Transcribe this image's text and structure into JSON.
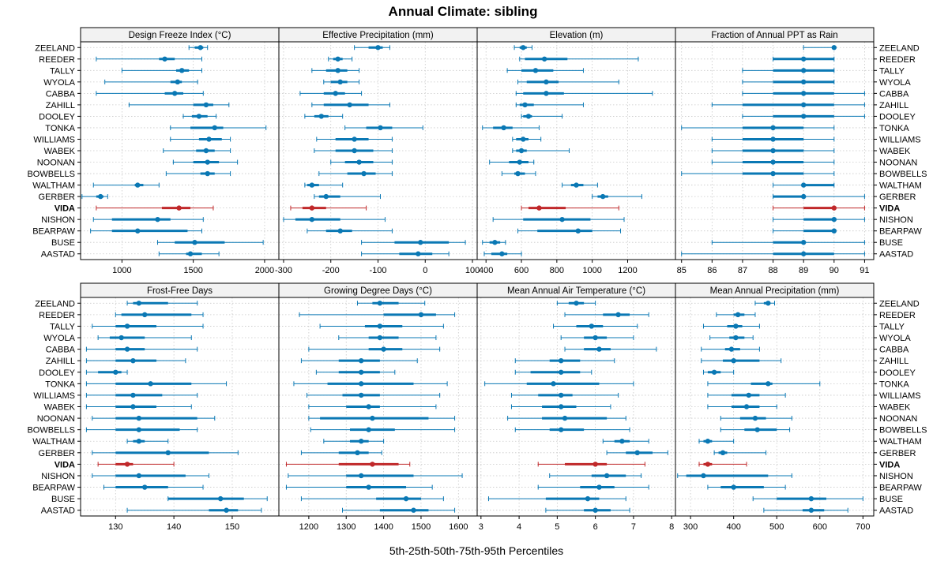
{
  "chart_data": {
    "type": "percentile-dotplot",
    "title": "Annual Climate: sibling",
    "xlabel": "5th-25th-50th-75th-95th Percentiles",
    "highlight": "VIDA",
    "categories": [
      "ZEELAND",
      "REEDER",
      "TALLY",
      "WYOLA",
      "CABBA",
      "ZAHILL",
      "DOOLEY",
      "TONKA",
      "WILLIAMS",
      "WABEK",
      "NOONAN",
      "BOWBELLS",
      "WALTHAM",
      "GERBER",
      "VIDA",
      "NISHON",
      "BEARPAW",
      "BUSE",
      "AASTAD"
    ],
    "colors": {
      "normal": "#0a78b4",
      "highlight": "#c0282a",
      "strip": "#f2f2f2",
      "grid": "#c8c8c8"
    },
    "panels": [
      {
        "name": "Design Freeze Index (°C)",
        "xlim": [
          710,
          2100
        ],
        "ticks": [
          1000,
          1500,
          2000
        ],
        "values": [
          [
            1470,
            1510,
            1550,
            1570,
            1600
          ],
          [
            820,
            1260,
            1300,
            1370,
            1560
          ],
          [
            1000,
            1380,
            1420,
            1470,
            1560
          ],
          [
            880,
            1340,
            1390,
            1420,
            1530
          ],
          [
            820,
            1300,
            1370,
            1430,
            1570
          ],
          [
            1050,
            1500,
            1590,
            1640,
            1750
          ],
          [
            1430,
            1490,
            1540,
            1600,
            1660
          ],
          [
            1340,
            1480,
            1650,
            1710,
            2010
          ],
          [
            1340,
            1540,
            1610,
            1700,
            1760
          ],
          [
            1290,
            1520,
            1590,
            1650,
            1760
          ],
          [
            1360,
            1500,
            1600,
            1680,
            1810
          ],
          [
            1310,
            1550,
            1600,
            1650,
            1760
          ],
          [
            800,
            1090,
            1110,
            1150,
            1260
          ],
          [
            720,
            820,
            850,
            870,
            900
          ],
          [
            820,
            1280,
            1400,
            1480,
            1640
          ],
          [
            800,
            930,
            1250,
            1340,
            1570
          ],
          [
            780,
            930,
            1110,
            1460,
            1560
          ],
          [
            1250,
            1370,
            1510,
            1720,
            1990
          ],
          [
            1260,
            1450,
            1480,
            1560,
            1680
          ]
        ]
      },
      {
        "name": "Effective Precipitation (mm)",
        "xlim": [
          -310,
          110
        ],
        "ticks": [
          -300,
          -200,
          -100,
          0,
          100
        ],
        "values": [
          [
            -150,
            -120,
            -100,
            -90,
            -75
          ],
          [
            -205,
            -195,
            -185,
            -175,
            -155
          ],
          [
            -240,
            -210,
            -185,
            -165,
            -140
          ],
          [
            -215,
            -200,
            -180,
            -165,
            -140
          ],
          [
            -265,
            -215,
            -190,
            -170,
            -135
          ],
          [
            -240,
            -215,
            -160,
            -120,
            -75
          ],
          [
            -255,
            -235,
            -220,
            -205,
            -175
          ],
          [
            -170,
            -125,
            -95,
            -70,
            -5
          ],
          [
            -230,
            -190,
            -150,
            -120,
            -70
          ],
          [
            -235,
            -190,
            -150,
            -110,
            -70
          ],
          [
            -200,
            -170,
            -140,
            -110,
            -70
          ],
          [
            -225,
            -165,
            -130,
            -105,
            -70
          ],
          [
            -255,
            -250,
            -240,
            -225,
            -175
          ],
          [
            -235,
            -225,
            -210,
            -180,
            -95
          ],
          [
            -285,
            -260,
            -240,
            -210,
            -125
          ],
          [
            -300,
            -275,
            -240,
            -180,
            -85
          ],
          [
            -250,
            -210,
            -180,
            -155,
            -70
          ],
          [
            -135,
            -65,
            -10,
            50,
            85
          ],
          [
            -135,
            -55,
            -15,
            15,
            50
          ]
        ]
      },
      {
        "name": "Elevation (m)",
        "xlim": [
          350,
          1470
        ],
        "ticks": [
          400,
          600,
          800,
          1000,
          1200
        ],
        "values": [
          [
            560,
            590,
            610,
            630,
            660
          ],
          [
            590,
            620,
            730,
            860,
            1260
          ],
          [
            520,
            600,
            680,
            780,
            950
          ],
          [
            580,
            630,
            740,
            810,
            1150
          ],
          [
            570,
            610,
            740,
            840,
            1340
          ],
          [
            570,
            590,
            620,
            670,
            950
          ],
          [
            600,
            610,
            640,
            660,
            830
          ],
          [
            380,
            440,
            500,
            550,
            700
          ],
          [
            550,
            570,
            610,
            640,
            710
          ],
          [
            550,
            570,
            600,
            630,
            870
          ],
          [
            420,
            530,
            590,
            640,
            670
          ],
          [
            490,
            560,
            580,
            620,
            680
          ],
          [
            830,
            880,
            910,
            950,
            1030
          ],
          [
            1000,
            1030,
            1060,
            1090,
            1280
          ],
          [
            600,
            640,
            700,
            850,
            1150
          ],
          [
            440,
            610,
            830,
            990,
            1180
          ],
          [
            580,
            690,
            920,
            1000,
            1160
          ],
          [
            380,
            420,
            450,
            480,
            510
          ],
          [
            390,
            430,
            490,
            520,
            600
          ]
        ]
      },
      {
        "name": "Fraction of Annual PPT as Rain",
        "xlim": [
          84.8,
          91.3
        ],
        "ticks": [
          85,
          86,
          87,
          88,
          89,
          90,
          91
        ],
        "values": [
          [
            89,
            90,
            90,
            90,
            90
          ],
          [
            88,
            88,
            89,
            90,
            90
          ],
          [
            87,
            88,
            89,
            90,
            90
          ],
          [
            87,
            88,
            89,
            90,
            90
          ],
          [
            87,
            88,
            89,
            90,
            91
          ],
          [
            86,
            87,
            89,
            90,
            91
          ],
          [
            87,
            88,
            89,
            90,
            91
          ],
          [
            85,
            87,
            88,
            89,
            90
          ],
          [
            86,
            87,
            88,
            89,
            90
          ],
          [
            86,
            87,
            88,
            89,
            90
          ],
          [
            86,
            87,
            88,
            89,
            90
          ],
          [
            85,
            87,
            88,
            89,
            90
          ],
          [
            88,
            89,
            89,
            90,
            90
          ],
          [
            88,
            88,
            89,
            89,
            91
          ],
          [
            88,
            89,
            90,
            90,
            91
          ],
          [
            88,
            89,
            90,
            90,
            91
          ],
          [
            88,
            89,
            90,
            90,
            90
          ],
          [
            86,
            88,
            89,
            89,
            91
          ],
          [
            85,
            88,
            89,
            90,
            91
          ]
        ]
      },
      {
        "name": "Frost-Free Days",
        "xlim": [
          124,
          158
        ],
        "ticks": [
          130,
          140,
          150
        ],
        "values": [
          [
            132,
            133,
            134,
            139,
            144
          ],
          [
            130,
            131,
            135,
            143,
            145
          ],
          [
            126,
            130,
            132,
            137,
            145
          ],
          [
            127,
            129,
            131,
            135,
            143
          ],
          [
            125,
            130,
            132,
            135,
            144
          ],
          [
            125,
            130,
            133,
            137,
            142
          ],
          [
            125,
            127,
            130,
            131,
            132
          ],
          [
            125,
            130,
            136,
            143,
            149
          ],
          [
            125,
            130,
            133,
            138,
            144
          ],
          [
            125,
            130,
            133,
            137,
            143
          ],
          [
            126,
            130,
            134,
            144,
            147
          ],
          [
            125,
            130,
            134,
            141,
            144
          ],
          [
            132,
            133,
            134,
            135,
            139
          ],
          [
            126,
            130,
            139,
            146,
            151
          ],
          [
            127,
            130,
            132,
            133,
            140
          ],
          [
            126,
            130,
            134,
            142,
            146
          ],
          [
            128,
            130,
            135,
            139,
            145
          ],
          [
            139,
            139,
            148,
            152,
            156
          ],
          [
            132,
            146,
            149,
            151,
            155
          ]
        ]
      },
      {
        "name": "Growing Degree Days (°C)",
        "xlim": [
          1120,
          1650
        ],
        "ticks": [
          1200,
          1300,
          1400,
          1500,
          1600
        ],
        "values": [
          [
            1330,
            1370,
            1390,
            1440,
            1510
          ],
          [
            1175,
            1400,
            1500,
            1540,
            1590
          ],
          [
            1230,
            1350,
            1390,
            1450,
            1560
          ],
          [
            1280,
            1360,
            1390,
            1440,
            1540
          ],
          [
            1200,
            1360,
            1400,
            1450,
            1550
          ],
          [
            1180,
            1280,
            1340,
            1390,
            1490
          ],
          [
            1220,
            1280,
            1340,
            1390,
            1430
          ],
          [
            1160,
            1250,
            1340,
            1480,
            1570
          ],
          [
            1195,
            1290,
            1340,
            1390,
            1550
          ],
          [
            1200,
            1300,
            1360,
            1390,
            1540
          ],
          [
            1200,
            1230,
            1370,
            1520,
            1590
          ],
          [
            1205,
            1310,
            1360,
            1430,
            1590
          ],
          [
            1240,
            1310,
            1340,
            1360,
            1400
          ],
          [
            1180,
            1280,
            1330,
            1360,
            1395
          ],
          [
            1140,
            1280,
            1370,
            1440,
            1470
          ],
          [
            1145,
            1300,
            1340,
            1480,
            1610
          ],
          [
            1140,
            1300,
            1360,
            1460,
            1530
          ],
          [
            1180,
            1380,
            1460,
            1500,
            1560
          ],
          [
            1290,
            1390,
            1480,
            1520,
            1590
          ]
        ]
      },
      {
        "name": "Mean Annual Air Temperature (°C)",
        "xlim": [
          2.9,
          8.1
        ],
        "ticks": [
          3,
          4,
          5,
          6,
          7,
          8
        ],
        "values": [
          [
            5.0,
            5.3,
            5.5,
            5.7,
            6.0
          ],
          [
            5.2,
            6.2,
            6.6,
            6.9,
            7.4
          ],
          [
            4.9,
            5.5,
            5.9,
            6.2,
            7.1
          ],
          [
            5.1,
            5.7,
            6.0,
            6.3,
            7.0
          ],
          [
            5.2,
            5.7,
            6.1,
            6.4,
            7.6
          ],
          [
            3.9,
            4.8,
            5.1,
            5.6,
            6.5
          ],
          [
            3.9,
            4.3,
            5.1,
            5.6,
            5.9
          ],
          [
            3.1,
            4.2,
            4.9,
            6.1,
            7.0
          ],
          [
            3.8,
            4.5,
            5.1,
            5.4,
            6.6
          ],
          [
            3.8,
            4.6,
            5.1,
            5.5,
            6.4
          ],
          [
            3.7,
            4.6,
            5.2,
            6.3,
            6.8
          ],
          [
            3.9,
            4.8,
            5.1,
            5.7,
            6.9
          ],
          [
            6.2,
            6.5,
            6.7,
            6.9,
            7.4
          ],
          [
            6.3,
            6.8,
            7.1,
            7.5,
            7.9
          ],
          [
            4.5,
            5.2,
            6.0,
            6.3,
            7.3
          ],
          [
            4.8,
            5.9,
            6.3,
            6.8,
            7.2
          ],
          [
            4.5,
            5.6,
            6.1,
            6.5,
            7.4
          ],
          [
            3.2,
            4.7,
            5.8,
            6.1,
            6.8
          ],
          [
            4.7,
            5.7,
            6.0,
            6.4,
            6.9
          ]
        ]
      },
      {
        "name": "Mean Annual Precipitation (mm)",
        "xlim": [
          265,
          725
        ],
        "ticks": [
          300,
          400,
          500,
          600,
          700
        ],
        "values": [
          [
            450,
            470,
            480,
            485,
            495
          ],
          [
            360,
            400,
            410,
            425,
            450
          ],
          [
            330,
            385,
            405,
            420,
            460
          ],
          [
            345,
            390,
            405,
            425,
            445
          ],
          [
            325,
            380,
            395,
            415,
            460
          ],
          [
            325,
            375,
            400,
            460,
            510
          ],
          [
            330,
            340,
            355,
            370,
            400
          ],
          [
            340,
            440,
            480,
            490,
            600
          ],
          [
            340,
            395,
            435,
            460,
            520
          ],
          [
            340,
            395,
            430,
            460,
            500
          ],
          [
            370,
            415,
            450,
            475,
            535
          ],
          [
            370,
            425,
            455,
            500,
            530
          ],
          [
            320,
            330,
            340,
            350,
            400
          ],
          [
            355,
            365,
            375,
            385,
            475
          ],
          [
            320,
            330,
            340,
            350,
            430
          ],
          [
            270,
            290,
            330,
            480,
            535
          ],
          [
            340,
            370,
            400,
            470,
            520
          ],
          [
            445,
            500,
            580,
            615,
            700
          ],
          [
            470,
            560,
            580,
            610,
            665
          ]
        ]
      }
    ]
  }
}
